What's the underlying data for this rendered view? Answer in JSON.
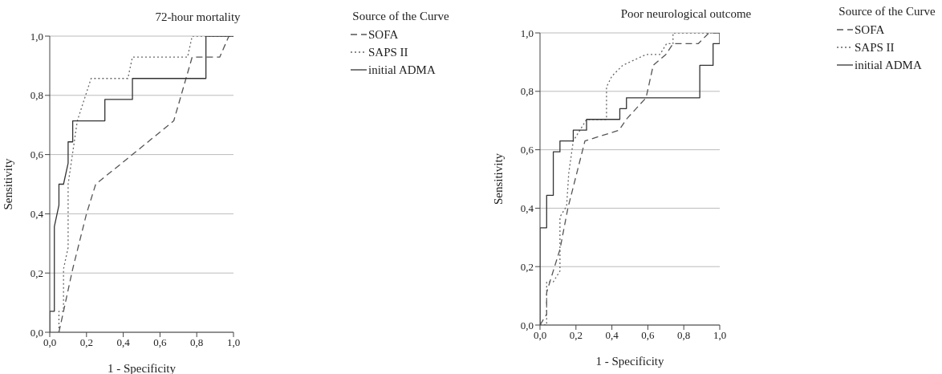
{
  "chart_data": [
    {
      "type": "line",
      "title": "72-hour mortality",
      "xlabel": "1 - Specificity",
      "ylabel": "Sensitivity",
      "legend_title": "Source of the Curve",
      "legend": "right",
      "grid": "y",
      "marker": "none",
      "xlim": [
        0,
        1
      ],
      "ylim": [
        0,
        1
      ],
      "xticks": [
        {
          "value": 0,
          "label": "0,0"
        },
        {
          "value": 0.2,
          "label": "0,2"
        },
        {
          "value": 0.4,
          "label": "0,4"
        },
        {
          "value": 0.6,
          "label": "0,6"
        },
        {
          "value": 0.8,
          "label": "0,8"
        },
        {
          "value": 1,
          "label": "1,0"
        }
      ],
      "yticks": [
        {
          "value": 0,
          "label": "0,0"
        },
        {
          "value": 0.2,
          "label": "0,2"
        },
        {
          "value": 0.4,
          "label": "0,4"
        },
        {
          "value": 0.6,
          "label": "0,6"
        },
        {
          "value": 0.8,
          "label": "0,8"
        },
        {
          "value": 1,
          "label": "1,0"
        }
      ],
      "series": [
        {
          "name": "SOFA",
          "color": "#555555",
          "line_style": "dashed",
          "x": [
            0.05,
            0.075,
            0.125,
            0.2,
            0.25,
            0.45,
            0.675,
            0.775,
            0.925,
            0.975,
            1
          ],
          "values": [
            0,
            0.071,
            0.214,
            0.4,
            0.5,
            0.6,
            0.714,
            0.929,
            0.929,
            1,
            1
          ]
        },
        {
          "name": "SAPS II",
          "color": "#666666",
          "line_style": "dotted",
          "x": [
            0.05,
            0.05,
            0.075,
            0.075,
            0.1,
            0.1,
            0.15,
            0.225,
            0.425,
            0.45,
            0.75,
            0.775,
            1
          ],
          "values": [
            0,
            0.071,
            0.071,
            0.214,
            0.286,
            0.5,
            0.714,
            0.857,
            0.857,
            0.929,
            0.929,
            1,
            1
          ]
        },
        {
          "name": "initial ADMA",
          "color": "#333333",
          "line_style": "solid",
          "x": [
            0,
            0,
            0.025,
            0.025,
            0.05,
            0.05,
            0.075,
            0.1,
            0.1,
            0.125,
            0.125,
            0.3,
            0.3,
            0.45,
            0.45,
            0.85,
            0.85,
            1
          ],
          "values": [
            0,
            0.071,
            0.071,
            0.357,
            0.429,
            0.5,
            0.5,
            0.571,
            0.643,
            0.643,
            0.714,
            0.714,
            0.786,
            0.786,
            0.857,
            0.857,
            1,
            1
          ]
        }
      ]
    },
    {
      "type": "line",
      "title": "Poor neurological outcome",
      "xlabel": "1 - Specificity",
      "ylabel": "Sensitivity",
      "legend_title": "Source of the Curve",
      "legend": "right",
      "grid": "y",
      "marker": "none",
      "xlim": [
        0,
        1
      ],
      "ylim": [
        0,
        1
      ],
      "xticks": [
        {
          "value": 0,
          "label": "0,0"
        },
        {
          "value": 0.2,
          "label": "0,2"
        },
        {
          "value": 0.4,
          "label": "0,4"
        },
        {
          "value": 0.6,
          "label": "0,6"
        },
        {
          "value": 0.8,
          "label": "0,8"
        },
        {
          "value": 1,
          "label": "1,0"
        }
      ],
      "yticks": [
        {
          "value": 0,
          "label": "0,0"
        },
        {
          "value": 0.2,
          "label": "0,2"
        },
        {
          "value": 0.4,
          "label": "0,4"
        },
        {
          "value": 0.6,
          "label": "0,6"
        },
        {
          "value": 0.8,
          "label": "0,8"
        },
        {
          "value": 1,
          "label": "1,0"
        }
      ],
      "series": [
        {
          "name": "SOFA",
          "color": "#555555",
          "line_style": "dashed",
          "x": [
            0,
            0.037,
            0.037,
            0.055,
            0.111,
            0.155,
            0.25,
            0.44,
            0.48,
            0.59,
            0.63,
            0.7,
            0.74,
            0.88,
            0.94,
            1
          ],
          "values": [
            0,
            0.037,
            0.111,
            0.148,
            0.259,
            0.4,
            0.63,
            0.667,
            0.704,
            0.778,
            0.889,
            0.926,
            0.963,
            0.963,
            1,
            1
          ]
        },
        {
          "name": "SAPS II",
          "color": "#666666",
          "line_style": "dotted",
          "x": [
            0,
            0.037,
            0.037,
            0.074,
            0.111,
            0.111,
            0.148,
            0.16,
            0.185,
            0.259,
            0.37,
            0.37,
            0.4,
            0.46,
            0.59,
            0.667,
            0.704,
            0.74,
            0.74,
            1
          ],
          "values": [
            0,
            0,
            0.148,
            0.148,
            0.185,
            0.37,
            0.407,
            0.52,
            0.63,
            0.704,
            0.704,
            0.815,
            0.852,
            0.889,
            0.926,
            0.926,
            0.963,
            0.963,
            1,
            1
          ]
        },
        {
          "name": "initial ADMA",
          "color": "#333333",
          "line_style": "solid",
          "x": [
            0,
            0,
            0.037,
            0.037,
            0.074,
            0.074,
            0.111,
            0.111,
            0.185,
            0.185,
            0.259,
            0.259,
            0.444,
            0.444,
            0.481,
            0.481,
            0.889,
            0.889,
            0.963,
            0.963,
            1,
            1
          ],
          "values": [
            0,
            0.333,
            0.333,
            0.444,
            0.444,
            0.593,
            0.593,
            0.63,
            0.63,
            0.667,
            0.667,
            0.704,
            0.704,
            0.741,
            0.741,
            0.778,
            0.778,
            0.889,
            0.889,
            0.963,
            0.963,
            1
          ]
        }
      ]
    }
  ]
}
